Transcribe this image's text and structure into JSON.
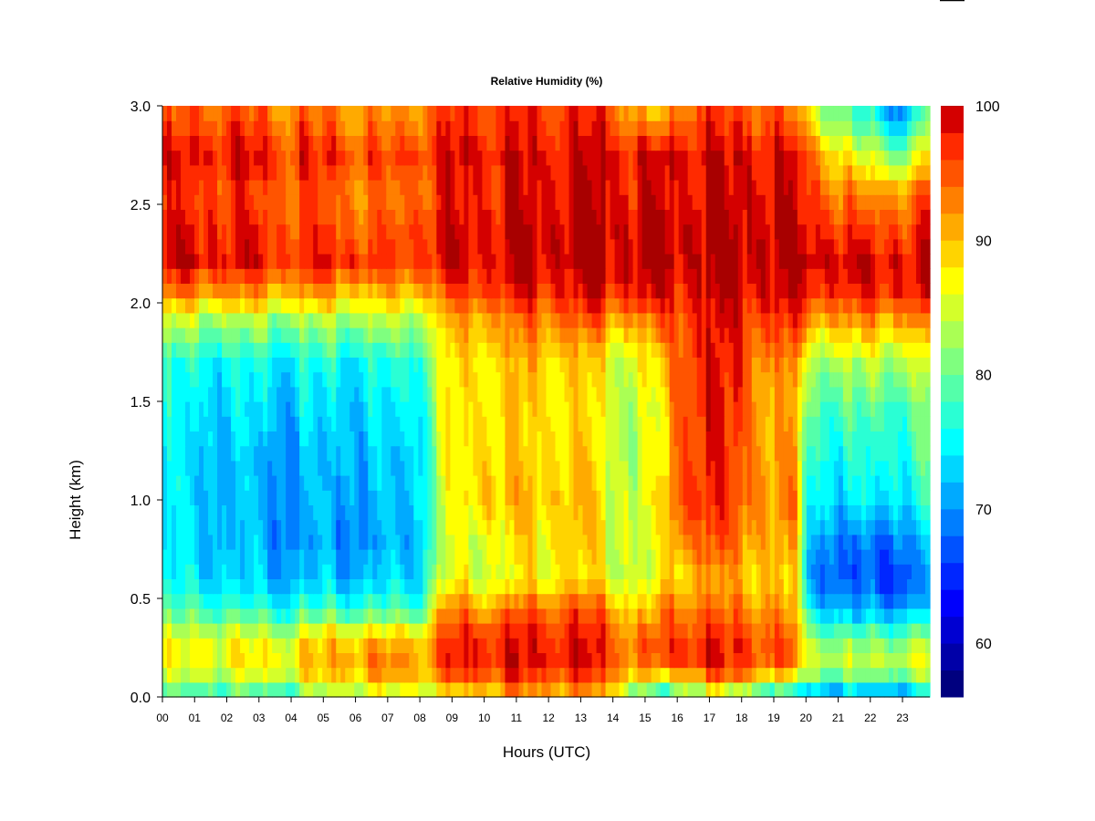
{
  "chart_data": {
    "type": "heatmap",
    "title": "Relative Humidity (%)",
    "xlabel": "Hours (UTC)",
    "ylabel": "Height (km)",
    "x_ticks": [
      "00",
      "01",
      "02",
      "03",
      "04",
      "05",
      "06",
      "07",
      "08",
      "09",
      "10",
      "11",
      "12",
      "13",
      "14",
      "15",
      "16",
      "17",
      "18",
      "19",
      "20",
      "21",
      "22",
      "23"
    ],
    "xlim": [
      0,
      23.85
    ],
    "y_ticks": [
      "0.0",
      "0.5",
      "1.0",
      "1.5",
      "2.0",
      "2.5",
      "3.0"
    ],
    "ylim": [
      0,
      3.0
    ],
    "colorbar": {
      "ticks": [
        "60",
        "70",
        "80",
        "90",
        "100"
      ],
      "range": [
        56,
        100
      ],
      "step": 2,
      "colors": [
        "#00007F",
        "#0000A8",
        "#0000D2",
        "#0000FC",
        "#0026FF",
        "#0052FF",
        "#007EFF",
        "#00AAFF",
        "#00D6FF",
        "#00FFFF",
        "#2AFFD4",
        "#54FFAA",
        "#7FFF7F",
        "#AAFF54",
        "#D4FF2A",
        "#FFFF00",
        "#FFD400",
        "#FFAA00",
        "#FF7F00",
        "#FF5400",
        "#FF2A00",
        "#D40000",
        "#A80000",
        "#7F0000"
      ]
    },
    "heights": [
      0.02,
      0.1,
      0.2,
      0.3,
      0.45,
      0.6,
      0.8,
      1.0,
      1.2,
      1.45,
      1.7,
      1.9,
      2.05,
      2.2,
      2.35,
      2.55,
      2.75,
      2.95
    ],
    "hours": [
      0,
      1,
      2,
      3,
      4,
      5,
      6,
      7,
      8,
      8.6,
      9,
      10,
      11,
      12,
      13,
      14,
      15,
      15.6,
      16,
      17,
      18,
      19,
      19.7,
      20,
      21,
      22,
      23,
      23.85
    ],
    "values": [
      [
        78,
        77,
        78,
        78,
        79,
        82,
        84,
        85,
        86,
        86,
        88,
        90,
        92,
        92,
        91,
        89,
        78,
        73,
        82,
        84,
        82,
        76,
        74,
        72,
        71,
        71,
        72,
        73
      ],
      [
        83,
        84,
        84,
        84,
        86,
        88,
        90,
        91,
        91,
        92,
        95,
        96,
        96,
        96,
        96,
        94,
        88,
        86,
        91,
        93,
        93,
        89,
        85,
        82,
        80,
        80,
        81,
        82
      ],
      [
        86,
        87,
        87,
        87,
        88,
        90,
        92,
        93,
        92,
        95,
        98,
        99,
        99,
        99,
        99,
        96,
        93,
        95,
        98,
        98,
        97,
        96,
        94,
        86,
        84,
        84,
        85,
        86
      ],
      [
        85,
        86,
        86,
        85,
        86,
        88,
        89,
        90,
        90,
        94,
        97,
        98,
        98,
        98,
        98,
        95,
        93,
        95,
        97,
        97,
        96,
        95,
        93,
        83,
        80,
        80,
        81,
        82
      ],
      [
        78,
        78,
        77,
        76,
        76,
        77,
        77,
        78,
        78,
        90,
        93,
        92,
        94,
        95,
        95,
        92,
        88,
        92,
        94,
        93,
        93,
        92,
        90,
        76,
        71,
        70,
        71,
        72
      ],
      [
        75,
        74,
        73,
        72,
        72,
        72,
        72,
        73,
        74,
        85,
        86,
        86,
        87,
        88,
        88,
        86,
        84,
        86,
        90,
        91,
        90,
        89,
        88,
        72,
        67,
        66,
        67,
        70
      ],
      [
        74,
        73,
        72,
        71,
        70,
        70,
        70,
        71,
        73,
        83,
        85,
        87,
        88,
        89,
        89,
        86,
        84,
        86,
        94,
        95,
        93,
        91,
        90,
        74,
        69,
        68,
        70,
        72
      ],
      [
        74,
        73,
        72,
        71,
        71,
        71,
        71,
        72,
        74,
        84,
        86,
        91,
        90,
        90,
        90,
        86,
        85,
        87,
        97,
        97,
        95,
        92,
        92,
        77,
        73,
        74,
        75,
        76
      ],
      [
        74,
        73,
        72,
        71,
        71,
        71,
        72,
        72,
        74,
        85,
        86,
        90,
        89,
        89,
        89,
        85,
        84,
        86,
        96,
        97,
        95,
        91,
        91,
        78,
        75,
        76,
        77,
        78
      ],
      [
        75,
        74,
        73,
        73,
        73,
        73,
        73,
        74,
        76,
        85,
        87,
        89,
        89,
        89,
        88,
        85,
        84,
        86,
        96,
        98,
        96,
        90,
        91,
        80,
        78,
        78,
        79,
        80
      ],
      [
        76,
        76,
        75,
        75,
        75,
        75,
        75,
        76,
        78,
        86,
        88,
        89,
        90,
        90,
        89,
        86,
        86,
        88,
        96,
        98,
        96,
        92,
        92,
        84,
        83,
        83,
        84,
        85
      ],
      [
        84,
        83,
        82,
        82,
        82,
        82,
        82,
        83,
        84,
        88,
        90,
        92,
        93,
        94,
        94,
        92,
        92,
        93,
        97,
        98,
        97,
        96,
        96,
        92,
        91,
        91,
        92,
        92
      ],
      [
        93,
        92,
        92,
        91,
        91,
        91,
        90,
        90,
        91,
        94,
        96,
        97,
        98,
        98,
        98,
        98,
        98,
        98,
        99,
        99,
        99,
        99,
        98,
        98,
        97,
        97,
        98,
        98
      ],
      [
        99,
        99,
        98,
        98,
        97,
        97,
        97,
        96,
        97,
        99,
        99,
        99,
        100,
        100,
        100,
        100,
        100,
        100,
        100,
        100,
        100,
        100,
        100,
        100,
        99,
        99,
        99,
        99
      ],
      [
        98,
        98,
        97,
        97,
        96,
        96,
        95,
        95,
        97,
        99,
        99,
        99,
        100,
        100,
        100,
        100,
        100,
        100,
        100,
        100,
        100,
        100,
        99,
        99,
        97,
        96,
        97,
        97
      ],
      [
        96,
        96,
        96,
        95,
        95,
        94,
        93,
        93,
        95,
        97,
        98,
        98,
        99,
        99,
        99,
        99,
        98,
        98,
        99,
        99,
        99,
        99,
        98,
        97,
        93,
        92,
        93,
        94
      ],
      [
        98,
        98,
        98,
        98,
        97,
        97,
        96,
        96,
        97,
        98,
        99,
        99,
        99,
        99,
        99,
        99,
        98,
        98,
        99,
        99,
        99,
        99,
        98,
        96,
        88,
        84,
        82,
        88
      ],
      [
        94,
        95,
        95,
        94,
        94,
        93,
        92,
        92,
        93,
        96,
        97,
        97,
        97,
        97,
        97,
        96,
        90,
        89,
        95,
        96,
        95,
        95,
        93,
        88,
        80,
        76,
        70,
        82
      ]
    ]
  }
}
